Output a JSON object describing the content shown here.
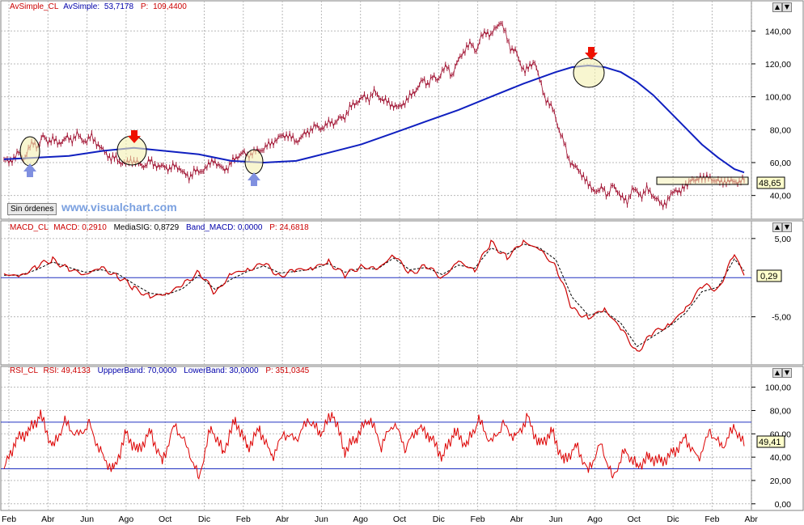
{
  "panels": {
    "price": {
      "header": {
        "name": "AvSimple_CL",
        "label": "AvSimple:",
        "value": "53,7178",
        "p_label": "P:",
        "p_value": "109,4400"
      },
      "last_value": "48,65",
      "button_label": "Sin órdenes",
      "watermark": "www.visualchart.com"
    },
    "macd": {
      "header": {
        "name": "MACD_CL",
        "macd": "MACD: 0,2910",
        "signal": "MediaSIG: 0,8729",
        "band": "Band_MACD: 0,0000",
        "p": "P: 24,6818"
      },
      "last_value": "0,29"
    },
    "rsi": {
      "header": {
        "name": "RSI_CL",
        "rsi": "RSI: 49,4133",
        "upper": "UppperBand: 70,0000",
        "lower": "LowerBand: 30,0000",
        "p": "P: 351,0345"
      },
      "last_value": "49,41"
    }
  },
  "x_axis_labels": [
    "Feb",
    "Abr",
    "Jun",
    "Ago",
    "Oct",
    "Dic",
    "Feb",
    "Abr",
    "Jun",
    "Ago",
    "Oct",
    "Dic",
    "Feb",
    "Abr",
    "Jun",
    "Ago",
    "Oct",
    "Dic",
    "Feb",
    "Abr"
  ],
  "window_buttons": [
    "▲",
    "▼",
    "▲",
    "▼",
    "▲",
    "▼"
  ],
  "colors": {
    "price_bars": "#a01030",
    "moving_average": "#1020c0",
    "macd": "#cc0000",
    "signal": "#000000",
    "rsi": "#dd0000",
    "band": "#2030c0",
    "grid": "#b8b8b8",
    "arrow_up": "#8090e0",
    "arrow_down": "#ee1100",
    "highlight_circle": "#f4f0b0",
    "header_name": "#cc0000",
    "header_text": "#0000aa"
  },
  "chart_data": [
    {
      "type": "line",
      "title": "AvSimple_CL",
      "xlabel": "",
      "ylabel": "",
      "ylim": [
        30,
        148
      ],
      "y_ticks": [
        "40,00",
        "60,00",
        "80,00",
        "100,00",
        "120,00",
        "140,00"
      ],
      "series": [
        {
          "name": "CL",
          "x": [
            0,
            6,
            12,
            18,
            24,
            30,
            36,
            42,
            48,
            54,
            60,
            66,
            72,
            78,
            84,
            90,
            96,
            102,
            108,
            114,
            120,
            126,
            132,
            138,
            144,
            150,
            156,
            162,
            168,
            174,
            180,
            186,
            192,
            198,
            204,
            210,
            216,
            222,
            228,
            234,
            240,
            246,
            252,
            258,
            264,
            270,
            276,
            282,
            288,
            294,
            300,
            306,
            312,
            318,
            324,
            330,
            336,
            342,
            348,
            354,
            360,
            366,
            372,
            378,
            384,
            390,
            396,
            402,
            408,
            414,
            420,
            426,
            432,
            438,
            444,
            450,
            456,
            462,
            468,
            474,
            480,
            486,
            492,
            498,
            504,
            510,
            516,
            522,
            528,
            534,
            540,
            546,
            552,
            558,
            564,
            570,
            576,
            582,
            588,
            594,
            600,
            606,
            612,
            618,
            624,
            630,
            636,
            642,
            648,
            654,
            660,
            666,
            672,
            678,
            684,
            690,
            696,
            702,
            708,
            714,
            720,
            726,
            732,
            738,
            744,
            750,
            756,
            762,
            768,
            774,
            780,
            786,
            792,
            798,
            804,
            810,
            816,
            822,
            828,
            834,
            840,
            846,
            852,
            858,
            864,
            870,
            876,
            882,
            888,
            894,
            900,
            906,
            912
          ],
          "values": [
            62,
            60,
            63,
            66,
            62,
            68,
            72,
            70,
            76,
            73,
            74,
            72,
            73,
            75,
            74,
            77,
            74,
            73,
            76,
            72,
            68,
            66,
            62,
            63,
            60,
            59,
            62,
            60,
            59,
            58,
            61,
            59,
            57,
            58,
            56,
            58,
            57,
            53,
            51,
            55,
            54,
            56,
            58,
            62,
            58,
            56,
            57,
            61,
            64,
            66,
            64,
            66,
            67,
            68,
            70,
            72,
            74,
            76,
            77,
            75,
            73,
            75,
            78,
            80,
            82,
            81,
            82,
            85,
            84,
            87,
            88,
            93,
            96,
            98,
            100,
            99,
            103,
            100,
            98,
            96,
            95,
            93,
            96,
            99,
            102,
            106,
            110,
            108,
            112,
            110,
            116,
            118,
            113,
            120,
            126,
            130,
            132,
            128,
            136,
            140,
            137,
            142,
            146,
            138,
            130,
            128,
            120,
            116,
            118,
            122,
            110,
            100,
            96,
            90,
            80,
            72,
            62,
            58,
            55,
            52,
            46,
            44,
            42,
            45,
            40,
            46,
            43,
            38,
            36,
            44,
            42,
            40,
            44,
            41,
            38,
            34,
            36,
            40,
            44,
            42,
            46,
            50,
            48,
            52,
            50,
            51,
            49,
            48,
            49,
            48,
            49,
            48,
            49
          ]
        },
        {
          "name": "AvSimple",
          "x": [
            0,
            40,
            80,
            120,
            160,
            200,
            240,
            280,
            320,
            360,
            400,
            440,
            480,
            520,
            560,
            600,
            640,
            680,
            700,
            720,
            740,
            760,
            780,
            800,
            820,
            840,
            860,
            880,
            900,
            912
          ],
          "values": [
            62,
            63,
            64,
            67,
            69,
            67,
            65,
            61,
            60,
            61,
            66,
            71,
            78,
            85,
            92,
            100,
            108,
            115,
            118,
            119,
            118,
            115,
            109,
            101,
            91,
            81,
            71,
            63,
            56,
            54
          ]
        }
      ]
    },
    {
      "type": "line",
      "title": "MACD_CL",
      "xlabel": "",
      "ylabel": "",
      "ylim": [
        -10,
        5.5
      ],
      "y_ticks": [
        "5,00",
        "-5,00"
      ],
      "series": [
        {
          "name": "MACD",
          "x": [
            0,
            20,
            40,
            60,
            80,
            100,
            120,
            140,
            160,
            180,
            200,
            220,
            240,
            260,
            280,
            300,
            320,
            340,
            360,
            380,
            400,
            420,
            440,
            460,
            480,
            500,
            520,
            540,
            560,
            580,
            600,
            620,
            640,
            660,
            680,
            700,
            720,
            740,
            760,
            780,
            800,
            820,
            840,
            860,
            880,
            900,
            912
          ],
          "values": [
            0.5,
            0.1,
            1.5,
            2.3,
            1.0,
            0.5,
            1.2,
            0.2,
            -1.3,
            -2.5,
            -2.0,
            -1.0,
            0.8,
            -2.0,
            0.5,
            1.0,
            1.8,
            0.2,
            1.0,
            1.2,
            2.0,
            0.3,
            1.5,
            1.0,
            3.0,
            0.5,
            1.5,
            0.0,
            2.0,
            1.0,
            4.5,
            2.5,
            4.7,
            3.5,
            1.5,
            -4.0,
            -5.2,
            -4.0,
            -6.5,
            -9.5,
            -7.0,
            -6.0,
            -4.0,
            -1.0,
            -1.5,
            3.0,
            0.29
          ]
        },
        {
          "name": "MediaSIG",
          "x": [
            0,
            20,
            40,
            60,
            80,
            100,
            120,
            140,
            160,
            180,
            200,
            220,
            240,
            260,
            280,
            300,
            320,
            340,
            360,
            380,
            400,
            420,
            440,
            460,
            480,
            500,
            520,
            540,
            560,
            580,
            600,
            620,
            640,
            660,
            680,
            700,
            720,
            740,
            760,
            780,
            800,
            820,
            840,
            860,
            880,
            900,
            912
          ],
          "values": [
            0.3,
            0.3,
            1.0,
            2.0,
            1.3,
            0.7,
            1.0,
            0.5,
            -0.8,
            -2.0,
            -2.2,
            -1.4,
            0.3,
            -1.5,
            -0.2,
            0.8,
            1.5,
            0.6,
            0.8,
            1.1,
            1.8,
            0.7,
            1.2,
            1.1,
            2.5,
            1.0,
            1.3,
            0.4,
            1.6,
            1.2,
            3.8,
            3.0,
            4.3,
            3.8,
            2.3,
            -2.5,
            -4.8,
            -4.3,
            -5.8,
            -8.8,
            -7.5,
            -6.2,
            -4.5,
            -1.8,
            -1.2,
            2.4,
            0.87
          ]
        }
      ]
    },
    {
      "type": "line",
      "title": "RSI_CL",
      "xlabel": "",
      "ylabel": "",
      "ylim": [
        -5,
        106
      ],
      "y_ticks": [
        "0,00",
        "20,00",
        "40,00",
        "60,00",
        "80,00",
        "100,00"
      ],
      "series": [
        {
          "name": "RSI",
          "x": [
            0,
            15,
            30,
            45,
            60,
            75,
            90,
            105,
            120,
            135,
            150,
            165,
            180,
            195,
            210,
            225,
            240,
            255,
            270,
            285,
            300,
            315,
            330,
            345,
            360,
            375,
            390,
            405,
            420,
            435,
            450,
            465,
            480,
            495,
            510,
            525,
            540,
            555,
            570,
            585,
            600,
            615,
            630,
            645,
            660,
            675,
            690,
            705,
            720,
            735,
            750,
            765,
            780,
            795,
            810,
            825,
            840,
            855,
            870,
            885,
            900,
            912
          ],
          "values": [
            30,
            55,
            62,
            76,
            48,
            70,
            58,
            68,
            42,
            28,
            60,
            45,
            62,
            36,
            68,
            50,
            22,
            66,
            44,
            72,
            48,
            64,
            40,
            60,
            55,
            72,
            60,
            78,
            45,
            58,
            74,
            50,
            70,
            48,
            66,
            58,
            40,
            62,
            50,
            72,
            52,
            68,
            56,
            74,
            50,
            62,
            36,
            50,
            28,
            52,
            22,
            46,
            32,
            40,
            36,
            44,
            56,
            38,
            62,
            48,
            66,
            49.41
          ]
        }
      ],
      "bands": [
        70,
        30
      ]
    }
  ]
}
